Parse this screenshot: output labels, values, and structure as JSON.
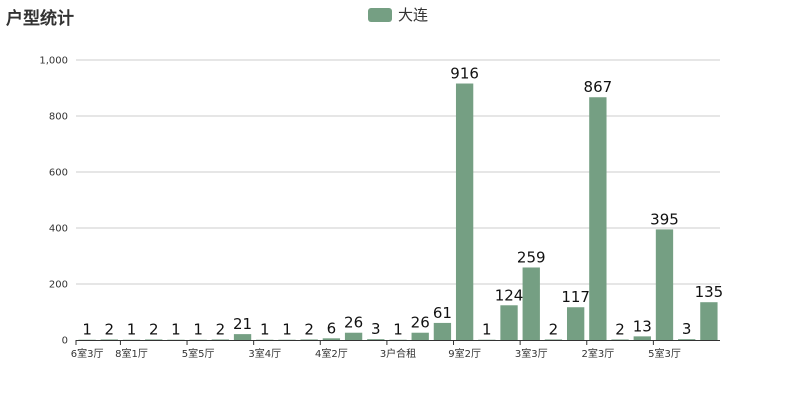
{
  "chart_data": {
    "type": "bar",
    "title": "户型统计",
    "legend": {
      "position": "top-center",
      "entries": [
        "大连"
      ]
    },
    "series": [
      {
        "name": "大连",
        "color": "#759f83",
        "values": [
          1,
          2,
          1,
          2,
          1,
          1,
          2,
          21,
          1,
          1,
          2,
          6,
          26,
          3,
          1,
          26,
          61,
          916,
          1,
          124,
          259,
          2,
          117,
          867,
          2,
          13,
          395,
          3,
          135
        ]
      }
    ],
    "categories": [
      "6室3厅",
      "",
      "8室1厅",
      "",
      "",
      "5室5厅",
      "",
      "",
      "3室4厅",
      "",
      "",
      "4室2厅",
      "",
      "",
      "3户合租",
      "",
      "",
      "9室2厅",
      "",
      "",
      "3室3厅",
      "",
      "",
      "2室3厅",
      "",
      "",
      "5室3厅",
      "",
      ""
    ],
    "ylim": [
      0,
      1000
    ],
    "yticks": [
      0,
      200,
      400,
      600,
      800,
      1000
    ],
    "ytick_labels": [
      "0",
      "200",
      "400",
      "600",
      "800",
      "1,000"
    ],
    "grid": true,
    "xlabel": "",
    "ylabel": ""
  }
}
